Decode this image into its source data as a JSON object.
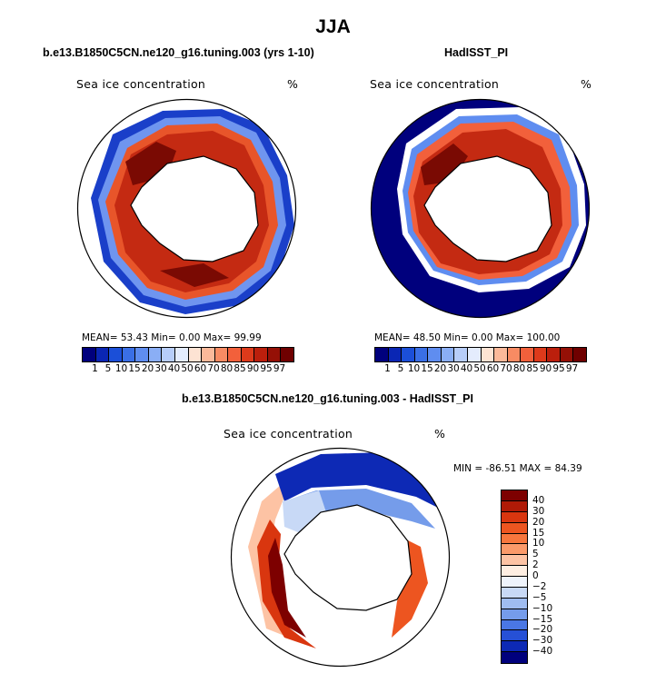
{
  "title": "JJA",
  "panels": {
    "model": {
      "title": "b.e13.B1850C5CN.ne120_g16.tuning.003 (yrs 1-10)",
      "variable": "Sea ice concentration",
      "units": "%",
      "stats": "MEAN=  53.43   Min=    0.00   Max=  99.99"
    },
    "obs": {
      "title": "HadISST_PI",
      "variable": "Sea ice concentration",
      "units": "%",
      "stats": "MEAN=  48.50   Min=    0.00   Max= 100.00"
    },
    "diff": {
      "title": "b.e13.B1850C5CN.ne120_g16.tuning.003 - HadISST_PI",
      "variable": "Sea ice concentration",
      "units": "%",
      "stats": "MIN = -86.51  MAX =  84.39"
    }
  },
  "colorbars": {
    "concentration": {
      "labels": [
        "1",
        "5",
        "10",
        "15",
        "20",
        "30",
        "40",
        "50",
        "60",
        "70",
        "80",
        "85",
        "90",
        "95",
        "97"
      ],
      "colors": [
        "#00007d",
        "#0a26b4",
        "#1b4fd8",
        "#3a6fe6",
        "#5f8df0",
        "#8aaef5",
        "#b7cdf9",
        "#e4ecfd",
        "#fde3d3",
        "#fbb99a",
        "#f88b63",
        "#f2603b",
        "#dd3a1b",
        "#bb1f0c",
        "#951006",
        "#6f0000"
      ]
    },
    "difference": {
      "labels": [
        "40",
        "30",
        "20",
        "15",
        "10",
        "5",
        "2",
        "0",
        "−2",
        "−5",
        "−10",
        "−15",
        "−20",
        "−30",
        "−40"
      ],
      "colors": [
        "#7d0000",
        "#b01a07",
        "#d9360f",
        "#ed5520",
        "#f7763d",
        "#fb9a6a",
        "#fdc3a4",
        "#feeee2",
        "#eef3fb",
        "#c8d9f6",
        "#9fbcf0",
        "#759cea",
        "#4a77e4",
        "#2650d6",
        "#0d29b5",
        "#00007d"
      ]
    }
  }
}
